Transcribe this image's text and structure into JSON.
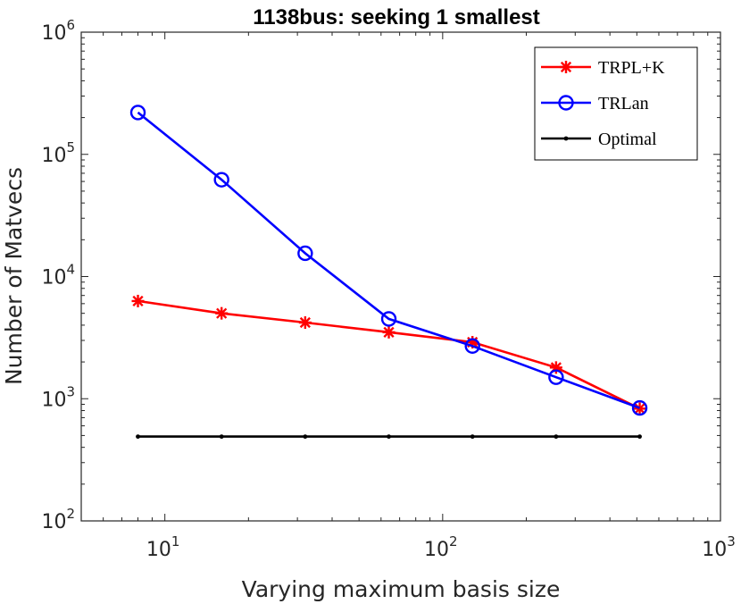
{
  "chart_data": {
    "type": "line",
    "title": "1138bus: seeking 1 smallest",
    "xlabel": "Varying maximum basis size",
    "ylabel": "Number of Matvecs",
    "xscale": "log",
    "yscale": "log",
    "xlim": [
      5,
      1000
    ],
    "ylim": [
      100,
      1000000
    ],
    "xticks": [
      {
        "value": 10,
        "base": "10",
        "exp": "1"
      },
      {
        "value": 100,
        "base": "10",
        "exp": "2"
      },
      {
        "value": 1000,
        "base": "10",
        "exp": "3"
      }
    ],
    "yticks": [
      {
        "value": 100,
        "base": "10",
        "exp": "2"
      },
      {
        "value": 1000,
        "base": "10",
        "exp": "3"
      },
      {
        "value": 10000,
        "base": "10",
        "exp": "4"
      },
      {
        "value": 100000,
        "base": "10",
        "exp": "5"
      },
      {
        "value": 1000000,
        "base": "10",
        "exp": "6"
      }
    ],
    "legend_position": "top-right",
    "series": [
      {
        "name": "TRPL+K",
        "color": "#ff0000",
        "marker": "asterisk",
        "x": [
          8,
          16,
          32,
          64,
          128,
          256,
          512
        ],
        "y": [
          6300,
          5000,
          4200,
          3500,
          2900,
          1800,
          830
        ]
      },
      {
        "name": "TRLan",
        "color": "#0000ff",
        "marker": "circle",
        "x": [
          8,
          16,
          32,
          64,
          128,
          256,
          512
        ],
        "y": [
          220000,
          62000,
          15500,
          4500,
          2700,
          1500,
          840
        ]
      },
      {
        "name": "Optimal",
        "color": "#000000",
        "marker": "dot",
        "x": [
          8,
          16,
          32,
          64,
          128,
          256,
          512
        ],
        "y": [
          490,
          490,
          490,
          490,
          490,
          490,
          490
        ]
      }
    ]
  }
}
